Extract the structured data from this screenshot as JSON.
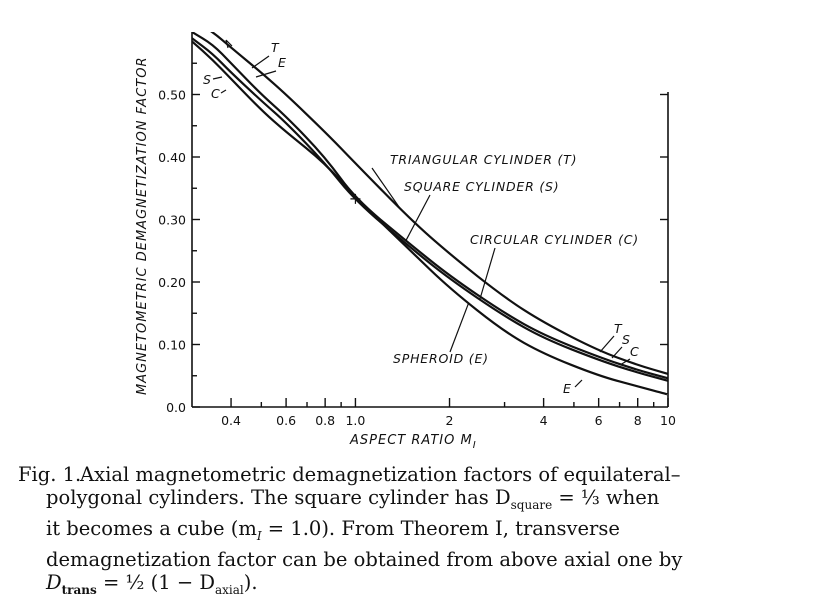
{
  "chart_data": {
    "type": "line",
    "xscale": "log",
    "xlim": [
      0.3,
      10
    ],
    "ylim": [
      0,
      0.6
    ],
    "xlabel": "ASPECT RATIO M",
    "xlabel_sub": "I",
    "ylabel": "MAGNETOMETRIC DEMAGNETIZATION FACTOR",
    "x_ticks": [
      0.4,
      0.6,
      0.8,
      1.0,
      2,
      4,
      6,
      8,
      10
    ],
    "x_tick_labels": [
      "0.4",
      "0.6",
      "0.8",
      "1.0",
      "2",
      "4",
      "6",
      "8",
      "10"
    ],
    "y_ticks": [
      0,
      0.1,
      0.2,
      0.3,
      0.4,
      0.5
    ],
    "y_tick_labels": [
      "0.0",
      "0.10",
      "0.20",
      "0.30",
      "0.40",
      "0.50"
    ],
    "grid": false,
    "legend": "none",
    "series": [
      {
        "key": "T",
        "x": [
          0.3,
          0.35,
          0.4,
          0.5,
          0.6,
          0.8,
          1.0,
          1.5,
          2,
          3,
          4,
          6,
          8,
          10
        ],
        "y": [
          0.62,
          0.6,
          0.575,
          0.535,
          0.5,
          0.44,
          0.39,
          0.3,
          0.245,
          0.175,
          0.135,
          0.09,
          0.067,
          0.053
        ]
      },
      {
        "key": "S",
        "x": [
          0.3,
          0.35,
          0.4,
          0.5,
          0.6,
          0.8,
          1.0,
          1.5,
          2,
          3,
          4,
          6,
          8,
          10
        ],
        "y": [
          0.6,
          0.58,
          0.55,
          0.5,
          0.465,
          0.4,
          0.333,
          0.26,
          0.21,
          0.15,
          0.115,
          0.08,
          0.059,
          0.046
        ]
      },
      {
        "key": "C",
        "x": [
          0.3,
          0.35,
          0.4,
          0.5,
          0.6,
          0.8,
          1.0,
          1.5,
          2,
          3,
          4,
          6,
          8,
          10
        ],
        "y": [
          0.59,
          0.565,
          0.535,
          0.49,
          0.455,
          0.39,
          0.33,
          0.255,
          0.205,
          0.145,
          0.11,
          0.075,
          0.055,
          0.042
        ]
      },
      {
        "key": "E",
        "x": [
          0.3,
          0.35,
          0.4,
          0.5,
          0.6,
          0.8,
          1.0,
          1.5,
          2,
          3,
          4,
          6,
          8,
          10
        ],
        "y": [
          0.585,
          0.555,
          0.525,
          0.475,
          0.44,
          0.39,
          0.335,
          0.25,
          0.19,
          0.12,
          0.085,
          0.05,
          0.033,
          0.02
        ]
      }
    ],
    "annotations": [
      {
        "text": "TRIANGULAR CYLINDER (T)",
        "target": "T",
        "at_x": 1.4
      },
      {
        "text": "SQUARE CYLINDER (S)",
        "target": "S",
        "at_x": 1.45
      },
      {
        "text": "CIRCULAR CYLINDER (C)",
        "target": "C",
        "at_x": 2.5
      },
      {
        "text": "SPHEROID (E)",
        "target": "E",
        "at_x": 2.3
      }
    ],
    "curve_letters_left": [
      {
        "text": "T",
        "target": "T"
      },
      {
        "text": "E",
        "target": "E"
      },
      {
        "text": "S",
        "target": "S"
      },
      {
        "text": "C",
        "target": "C"
      }
    ],
    "curve_letters_right": [
      {
        "text": "T",
        "target": "T"
      },
      {
        "text": "S",
        "target": "S"
      },
      {
        "text": "C",
        "target": "C"
      },
      {
        "text": "E",
        "target": "E"
      }
    ]
  },
  "caption": {
    "label": "Fig. 1.",
    "lines": [
      "Axial magnetometric demagnetization factors of equilateral–",
      "polygonal cylinders. The square cylinder has D",
      "it becomes a cube (m",
      "demagnetization factor can be obtained from above axial one by",
      "D"
    ],
    "square_sub": "square",
    "eq_third": " = ⅓ when",
    "cube_sub": "I",
    "cube_rest": " = 1.0). From Theorem I, transverse",
    "trans_sub": "trans",
    "trans_mid": " = ½ (1 − D",
    "axial_sub": "axial",
    "trans_end": ")."
  }
}
